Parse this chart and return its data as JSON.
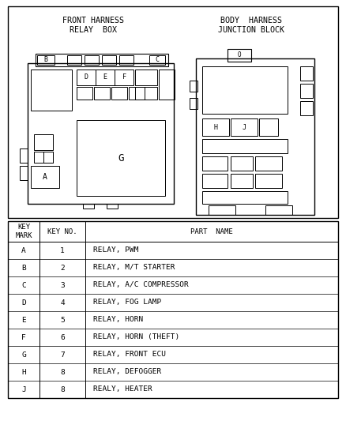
{
  "title_left": "FRONT HARNESS\nRELAY  BOX",
  "title_right": "BODY  HARNESS\nJUNCTION BLOCK",
  "bg_color": "#ffffff",
  "border_color": "#000000",
  "table_headers": [
    "KEY\nMARK",
    "KEY NO.",
    "PART  NAME"
  ],
  "table_rows": [
    [
      "A",
      "1",
      "RELAY, PWM"
    ],
    [
      "B",
      "2",
      "RELAY, M/T STARTER"
    ],
    [
      "C",
      "3",
      "RELAY, A/C COMPRESSOR"
    ],
    [
      "D",
      "4",
      "RELAY, FOG LAMP"
    ],
    [
      "E",
      "5",
      "RELAY, HORN"
    ],
    [
      "F",
      "6",
      "RELAY, HORN (THEFT)"
    ],
    [
      "G",
      "7",
      "RELAY, FRONT ECU"
    ],
    [
      "H",
      "8",
      "RELAY, DEFOGGER"
    ],
    [
      "J",
      "8",
      "REALY, HEATER"
    ]
  ],
  "font_size_title": 7.2,
  "font_size_table_hdr": 6.5,
  "font_size_table_data": 6.8,
  "font_size_label": 6.0
}
